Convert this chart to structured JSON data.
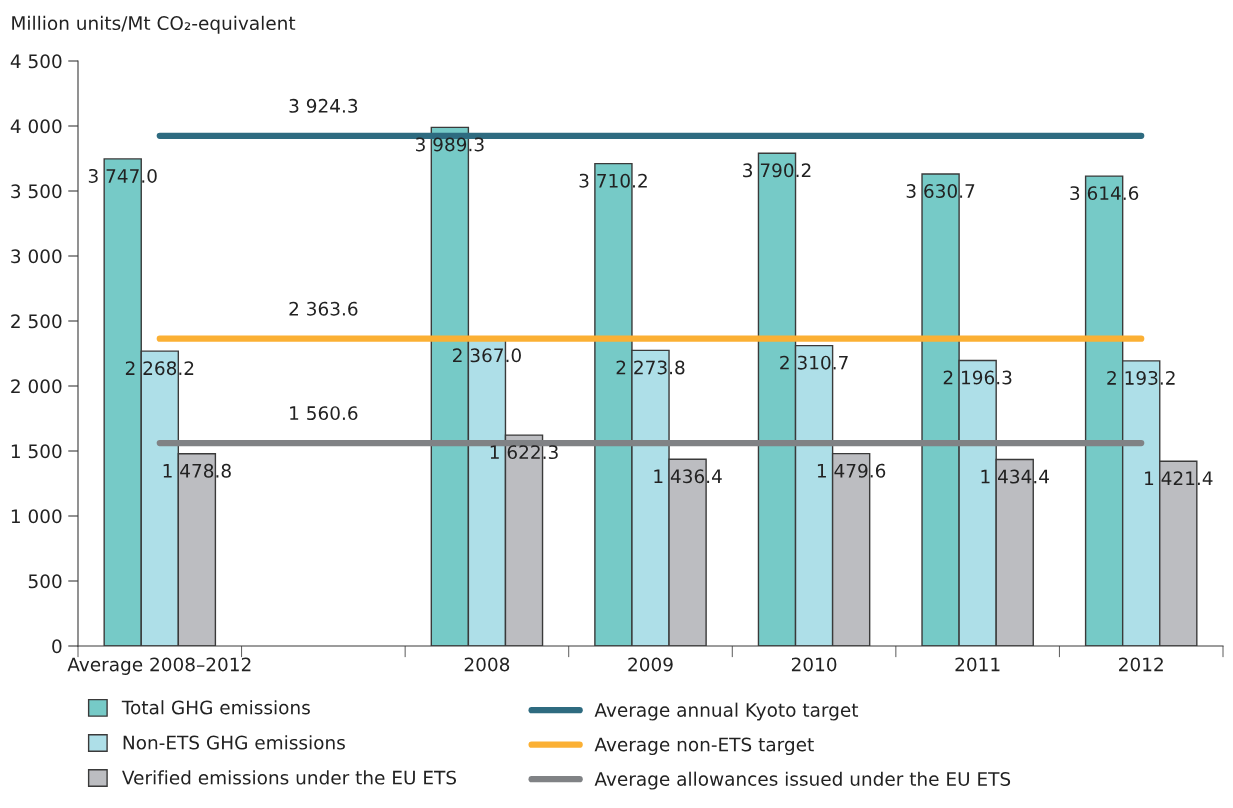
{
  "chart_data": {
    "type": "bar",
    "ylabel": "Million units/Mt CO₂-equivalent",
    "categories": [
      "Average 2008–2012",
      null,
      "2008",
      "2009",
      "2010",
      "2011",
      "2012"
    ],
    "series": [
      {
        "name": "Total GHG emissions",
        "color": "#76cac7",
        "values": [
          3747.0,
          null,
          3989.3,
          3710.2,
          3790.2,
          3630.7,
          3614.6
        ],
        "value_labels": [
          "3 747.0",
          null,
          "3 989.3",
          "3 710.2",
          "3 790.2",
          "3 630.7",
          "3 614.6"
        ]
      },
      {
        "name": "Non-ETS GHG emissions",
        "color": "#aedfe8",
        "values": [
          2268.2,
          null,
          2367.0,
          2273.8,
          2310.7,
          2196.3,
          2193.2
        ],
        "value_labels": [
          "2 268.2",
          null,
          "2 367.0",
          "2 273.8",
          "2 310.7",
          "2 196.3",
          "2 193.2"
        ]
      },
      {
        "name": "Verified emissions under the EU ETS",
        "color": "#bcbdc1",
        "values": [
          1478.8,
          null,
          1622.3,
          1436.4,
          1479.6,
          1434.4,
          1421.4
        ],
        "value_labels": [
          "1 478.8",
          null,
          "1 622.3",
          "1 436.4",
          "1 479.6",
          "1 434.4",
          "1 421.4"
        ]
      },
      {
        "name": "Average annual Kyoto target",
        "type": "line",
        "color": "#2e6b80",
        "values": [
          3924.3,
          3924.3,
          3924.3,
          3924.3,
          3924.3,
          3924.3,
          3924.3
        ],
        "value_labels": [
          null,
          "3 924.3",
          null,
          null,
          null,
          null,
          null
        ]
      },
      {
        "name": "Average non-ETS target",
        "type": "line",
        "color": "#fbb034",
        "values": [
          2363.6,
          2363.6,
          2363.6,
          2363.6,
          2363.6,
          2363.6,
          2363.6
        ],
        "value_labels": [
          null,
          "2 363.6",
          null,
          null,
          null,
          null,
          null
        ]
      },
      {
        "name": "Average allowances issued under the EU ETS",
        "type": "line",
        "color": "#808285",
        "values": [
          1560.6,
          1560.6,
          1560.6,
          1560.6,
          1560.6,
          1560.6,
          1560.6
        ],
        "value_labels": [
          null,
          "1 560.6",
          null,
          null,
          null,
          null,
          null
        ]
      }
    ],
    "ylim": [
      0,
      4500
    ],
    "yticks": [
      0,
      500,
      {
        "value": 1000,
        "label": "1 000"
      },
      {
        "value": 1500,
        "label": "1 500"
      },
      {
        "value": 2000,
        "label": "2 000"
      },
      {
        "value": 2500,
        "label": "2 500"
      },
      {
        "value": 3000,
        "label": "3 000"
      },
      {
        "value": 3500,
        "label": "3 500"
      },
      {
        "value": 4000,
        "label": "4 000"
      },
      {
        "value": 4500,
        "label": "4 500"
      }
    ],
    "legend": "bottom"
  }
}
